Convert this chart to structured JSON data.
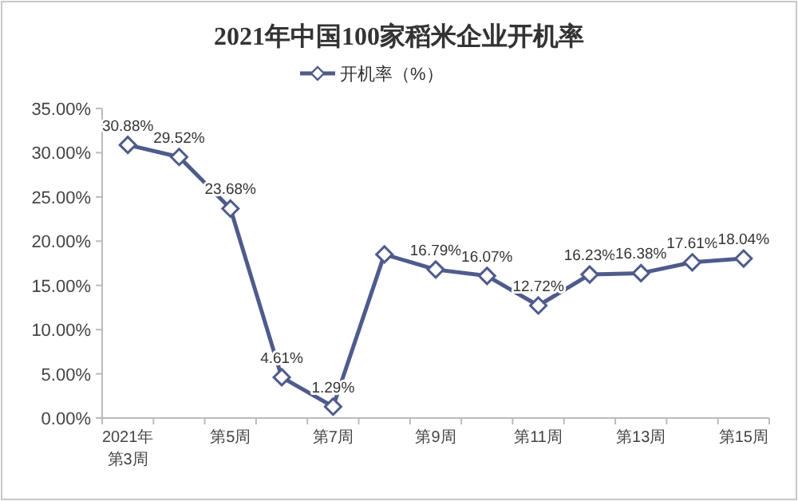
{
  "chart_data": {
    "type": "line",
    "title": "2021年中国100家稻米企业开机率",
    "categories": [
      "2021年第3周",
      null,
      "第5周",
      null,
      "第7周",
      null,
      "第9周",
      null,
      "第11周",
      null,
      "第13周",
      null,
      "第15周"
    ],
    "series": [
      {
        "name": "开机率（%）",
        "color": "#4f5b8c",
        "values": [
          30.88,
          29.52,
          23.68,
          4.61,
          1.29,
          18.5,
          16.79,
          16.07,
          12.72,
          16.23,
          16.38,
          17.61,
          18.04
        ],
        "value_labels": [
          "30.88%",
          "29.52%",
          "23.68%",
          "4.61%",
          "1.29%",
          null,
          "16.79%",
          "16.07%",
          "12.72%",
          "16.23%",
          "16.38%",
          "17.61%",
          "18.04%"
        ]
      }
    ],
    "ylim": [
      0,
      35
    ],
    "yticks": [
      {
        "value": 0,
        "label": "0.00%"
      },
      {
        "value": 5,
        "label": "5.00%"
      },
      {
        "value": 10,
        "label": "10.00%"
      },
      {
        "value": 15,
        "label": "15.00%"
      },
      {
        "value": 20,
        "label": "20.00%"
      },
      {
        "value": 25,
        "label": "25.00%"
      },
      {
        "value": 30,
        "label": "30.00%"
      },
      {
        "value": 35,
        "label": "35.00%"
      }
    ],
    "legend": "top",
    "marker": "diamond",
    "line_style": "solid",
    "grid": false
  }
}
